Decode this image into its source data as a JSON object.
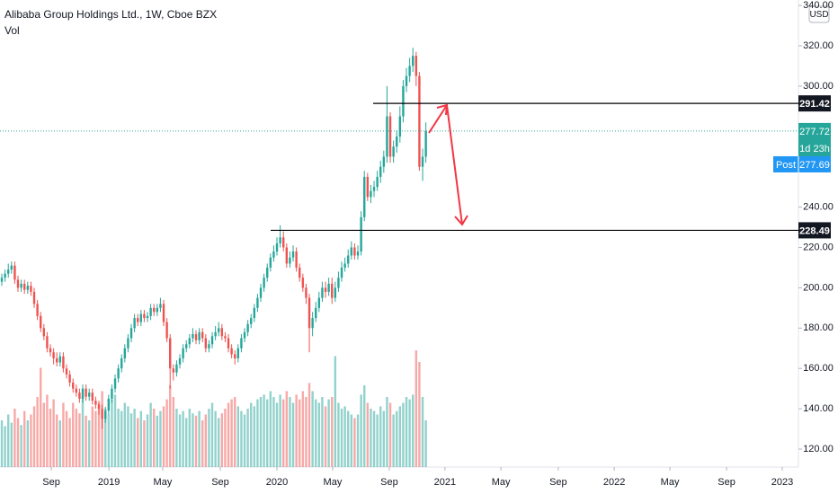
{
  "chart_data": {
    "type": "candlestick",
    "title": "Alibaba Group Holdings Ltd., 1W, Cboe BZX",
    "subtitle": "Vol",
    "currency": "USD",
    "up_color": "#26a69a",
    "down_color": "#ef5350",
    "open": [
      203,
      205,
      207,
      209,
      211,
      204,
      200,
      202,
      199,
      201,
      198,
      192,
      186,
      180,
      176,
      170,
      168,
      165,
      163,
      166,
      160,
      157,
      153,
      150,
      148,
      145,
      150,
      146,
      148,
      144,
      142,
      140,
      135,
      139,
      145,
      150,
      155,
      160,
      165,
      170,
      175,
      180,
      185,
      183,
      187,
      185,
      186,
      190,
      188,
      190,
      192,
      183,
      175,
      160,
      158,
      162,
      165,
      170,
      172,
      175,
      177,
      174,
      178,
      175,
      170,
      172,
      176,
      178,
      180,
      176,
      175,
      170,
      167,
      165,
      170,
      175,
      178,
      182,
      185,
      190,
      195,
      200,
      205,
      210,
      215,
      218,
      222,
      225,
      220,
      212,
      215,
      218,
      210,
      205,
      200,
      195,
      180,
      185,
      190,
      195,
      200,
      198,
      202,
      195,
      200,
      205,
      210,
      212,
      216,
      220,
      216,
      218,
      235,
      255,
      245,
      248,
      250,
      255,
      260,
      265,
      285,
      265,
      270,
      275,
      285,
      300,
      305,
      310,
      315,
      305,
      260,
      265
    ],
    "high": [
      207,
      209,
      212,
      213,
      213,
      206,
      204,
      204,
      203,
      203,
      200,
      194,
      188,
      182,
      178,
      172,
      170,
      168,
      168,
      168,
      162,
      159,
      155,
      152,
      150,
      152,
      152,
      150,
      150,
      146,
      144,
      142,
      141,
      147,
      152,
      157,
      162,
      167,
      172,
      177,
      182,
      187,
      187,
      189,
      189,
      188,
      192,
      192,
      192,
      195,
      194,
      185,
      177,
      162,
      164,
      167,
      172,
      174,
      177,
      180,
      179,
      180,
      180,
      177,
      174,
      178,
      181,
      183,
      182,
      178,
      177,
      172,
      169,
      172,
      177,
      180,
      184,
      187,
      192,
      197,
      202,
      207,
      212,
      217,
      221,
      225,
      231,
      228,
      222,
      218,
      221,
      220,
      212,
      207,
      202,
      197,
      188,
      193,
      198,
      203,
      203,
      205,
      205,
      203,
      208,
      213,
      215,
      219,
      223,
      222,
      221,
      238,
      258,
      257,
      251,
      253,
      258,
      263,
      268,
      300,
      287,
      273,
      278,
      290,
      303,
      309,
      314,
      319,
      317,
      307,
      269,
      282
    ],
    "low": [
      201,
      203,
      205,
      207,
      202,
      198,
      198,
      197,
      197,
      196,
      190,
      184,
      178,
      174,
      168,
      166,
      162,
      161,
      161,
      158,
      155,
      151,
      148,
      146,
      143,
      143,
      144,
      144,
      142,
      140,
      137,
      130,
      133,
      137,
      143,
      148,
      153,
      158,
      163,
      168,
      173,
      178,
      181,
      181,
      183,
      183,
      184,
      186,
      186,
      188,
      181,
      173,
      150,
      154,
      156,
      160,
      163,
      168,
      170,
      173,
      172,
      172,
      173,
      168,
      168,
      170,
      174,
      176,
      174,
      173,
      168,
      165,
      162,
      163,
      168,
      173,
      176,
      180,
      183,
      188,
      193,
      198,
      203,
      208,
      213,
      216,
      220,
      218,
      210,
      210,
      213,
      208,
      203,
      198,
      192,
      168,
      176,
      183,
      188,
      193,
      195,
      196,
      192,
      193,
      198,
      203,
      208,
      210,
      214,
      214,
      214,
      216,
      233,
      243,
      242,
      245,
      248,
      252,
      257,
      262,
      262,
      262,
      267,
      272,
      282,
      297,
      302,
      307,
      300,
      258,
      253,
      262
    ],
    "close": [
      205,
      207,
      209,
      211,
      204,
      200,
      202,
      199,
      201,
      198,
      192,
      186,
      180,
      176,
      170,
      168,
      165,
      163,
      166,
      160,
      157,
      153,
      150,
      148,
      145,
      150,
      146,
      148,
      144,
      142,
      140,
      135,
      139,
      145,
      150,
      155,
      160,
      165,
      170,
      175,
      180,
      185,
      183,
      187,
      185,
      186,
      190,
      188,
      190,
      192,
      183,
      175,
      160,
      158,
      162,
      165,
      170,
      172,
      175,
      177,
      174,
      178,
      175,
      170,
      172,
      176,
      178,
      180,
      176,
      175,
      170,
      167,
      165,
      170,
      175,
      178,
      182,
      185,
      190,
      195,
      200,
      205,
      210,
      215,
      218,
      222,
      225,
      220,
      212,
      215,
      218,
      210,
      205,
      200,
      195,
      180,
      185,
      190,
      195,
      200,
      198,
      202,
      195,
      200,
      205,
      210,
      212,
      216,
      220,
      216,
      218,
      235,
      255,
      245,
      248,
      250,
      255,
      260,
      265,
      285,
      265,
      270,
      275,
      285,
      300,
      305,
      310,
      315,
      305,
      260,
      265,
      277.72
    ],
    "volume": [
      40,
      35,
      45,
      38,
      50,
      42,
      36,
      48,
      40,
      45,
      52,
      60,
      85,
      55,
      62,
      50,
      58,
      45,
      40,
      55,
      48,
      42,
      55,
      50,
      46,
      60,
      44,
      40,
      52,
      48,
      55,
      65,
      50,
      45,
      58,
      62,
      50,
      48,
      55,
      52,
      46,
      50,
      42,
      48,
      40,
      45,
      55,
      50,
      44,
      48,
      52,
      58,
      70,
      60,
      50,
      45,
      48,
      42,
      50,
      46,
      44,
      48,
      40,
      45,
      50,
      55,
      48,
      42,
      46,
      50,
      55,
      58,
      60,
      52,
      48,
      45,
      50,
      55,
      52,
      58,
      60,
      62,
      58,
      65,
      60,
      55,
      62,
      58,
      65,
      60,
      55,
      62,
      58,
      65,
      60,
      72,
      65,
      58,
      55,
      60,
      52,
      58,
      60,
      95,
      55,
      50,
      52,
      48,
      45,
      42,
      45,
      62,
      70,
      55,
      50,
      48,
      45,
      52,
      48,
      60,
      55,
      45,
      48,
      52,
      55,
      60,
      58,
      62,
      100,
      90,
      60,
      40
    ],
    "ylim": [
      111.1,
      342.7
    ],
    "yticks": [
      {
        "value": 120,
        "label": "120.00"
      },
      {
        "value": 140,
        "label": "140.00"
      },
      {
        "value": 160,
        "label": "160.00"
      },
      {
        "value": 180,
        "label": "180.00"
      },
      {
        "value": 200,
        "label": "200.00"
      },
      {
        "value": 220,
        "label": "220.00"
      },
      {
        "value": 240,
        "label": "240.00"
      },
      {
        "value": 300,
        "label": "300.00"
      },
      {
        "value": 320,
        "label": "320.00"
      },
      {
        "value": 340,
        "label": "340.00"
      }
    ],
    "xlim": [
      -0.56,
      246.1
    ],
    "xticks": [
      {
        "value": 15.3,
        "label": "Sep"
      },
      {
        "value": 33.1,
        "label": "2019"
      },
      {
        "value": 49.7,
        "label": "May"
      },
      {
        "value": 67.5,
        "label": "Sep"
      },
      {
        "value": 85,
        "label": "2020"
      },
      {
        "value": 102.2,
        "label": "May"
      },
      {
        "value": 119.7,
        "label": "Sep"
      },
      {
        "value": 136.9,
        "label": "2021"
      },
      {
        "value": 154.2,
        "label": "May"
      },
      {
        "value": 171.9,
        "label": "Sep"
      },
      {
        "value": 189.2,
        "label": "2022"
      },
      {
        "value": 206.4,
        "label": "May"
      },
      {
        "value": 223.9,
        "label": "Sep"
      },
      {
        "value": 241.1,
        "label": "2023"
      }
    ],
    "hlines": [
      291.42,
      228.49
    ],
    "last_price": 277.72,
    "countdown": "1d 23h",
    "post_label": "Post",
    "post_price": 277.69
  }
}
